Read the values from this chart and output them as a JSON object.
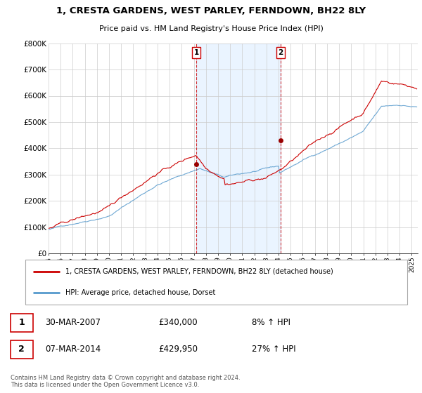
{
  "title": "1, CRESTA GARDENS, WEST PARLEY, FERNDOWN, BH22 8LY",
  "subtitle": "Price paid vs. HM Land Registry's House Price Index (HPI)",
  "ylabel_ticks": [
    "£0",
    "£100K",
    "£200K",
    "£300K",
    "£400K",
    "£500K",
    "£600K",
    "£700K",
    "£800K"
  ],
  "ylim": [
    0,
    800000
  ],
  "xlim_start": 1995.0,
  "xlim_end": 2025.5,
  "background_color": "#ffffff",
  "grid_color": "#cccccc",
  "shade_color": "#ddeeff",
  "shade_x1": 2007.2,
  "shade_x2": 2014.17,
  "line1_color": "#cc0000",
  "line2_color": "#5599cc",
  "marker_color": "#990000",
  "sale1_x": 2007.2,
  "sale1_y": 340000,
  "sale2_x": 2014.17,
  "sale2_y": 429950,
  "annotation1_label": "1",
  "annotation2_label": "2",
  "legend1_label": "1, CRESTA GARDENS, WEST PARLEY, FERNDOWN, BH22 8LY (detached house)",
  "legend2_label": "HPI: Average price, detached house, Dorset",
  "table_rows": [
    {
      "num": "1",
      "date": "30-MAR-2007",
      "price": "£340,000",
      "hpi": "8% ↑ HPI"
    },
    {
      "num": "2",
      "date": "07-MAR-2014",
      "price": "£429,950",
      "hpi": "27% ↑ HPI"
    }
  ],
  "footnote": "Contains HM Land Registry data © Crown copyright and database right 2024.\nThis data is licensed under the Open Government Licence v3.0."
}
